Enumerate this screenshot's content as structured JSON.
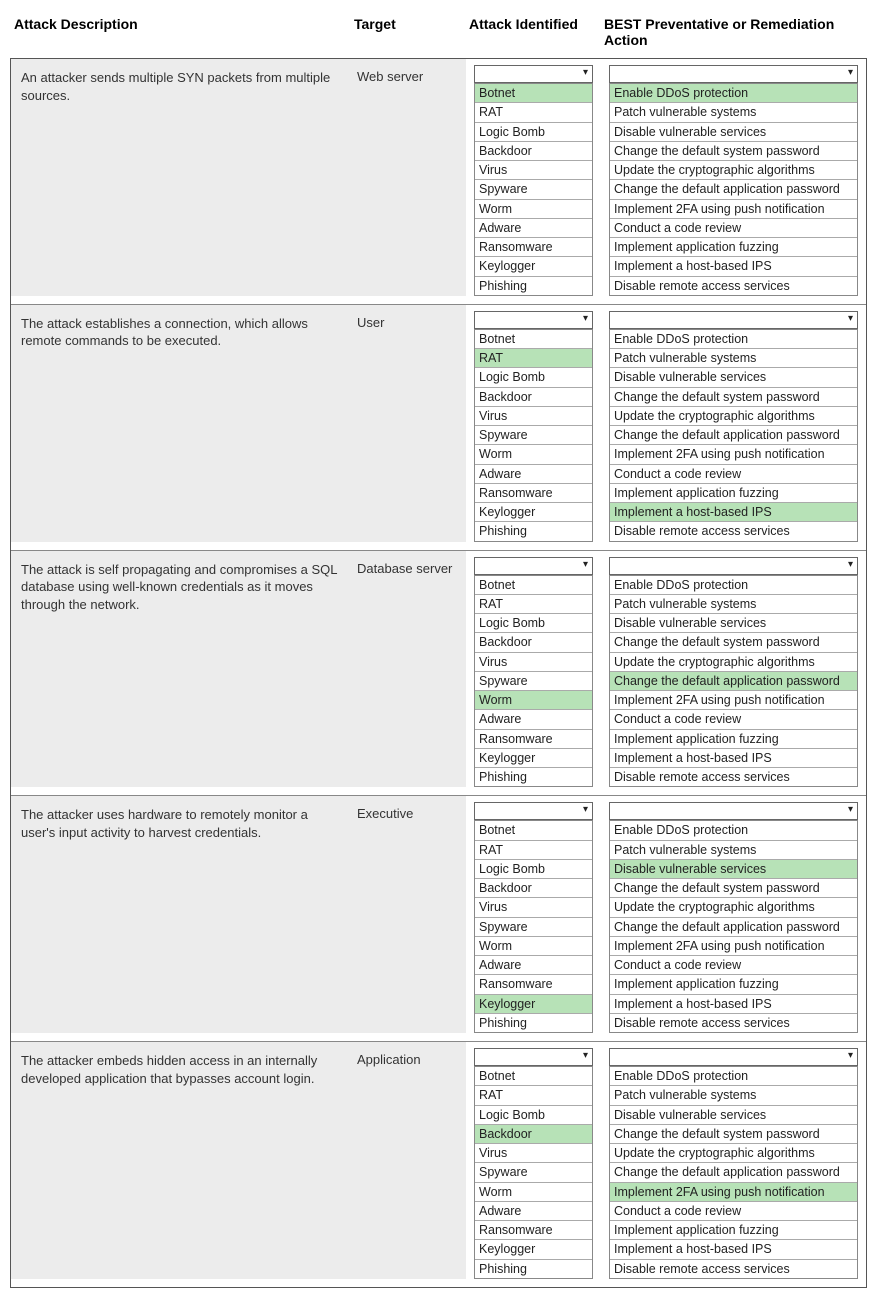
{
  "headers": {
    "desc": "Attack Description",
    "target": "Target",
    "attack": "Attack Identified",
    "action": "BEST Preventative or Remediation Action"
  },
  "attack_options": [
    "Botnet",
    "RAT",
    "Logic Bomb",
    "Backdoor",
    "Virus",
    "Spyware",
    "Worm",
    "Adware",
    "Ransomware",
    "Keylogger",
    "Phishing"
  ],
  "action_options": [
    "Enable DDoS protection",
    "Patch vulnerable systems",
    "Disable vulnerable services",
    "Change the default system password",
    "Update the cryptographic algorithms",
    "Change the default application password",
    "Implement 2FA using push notification",
    "Conduct a code review",
    "Implement application fuzzing",
    "Implement a host-based IPS",
    "Disable remote access services"
  ],
  "scenarios": [
    {
      "desc": "An attacker sends multiple SYN packets from multiple sources.",
      "target": "Web server",
      "attack_hl": 0,
      "action_hl": 0
    },
    {
      "desc": "The attack establishes a connection, which allows remote commands to be executed.",
      "target": "User",
      "attack_hl": 1,
      "action_hl": 9
    },
    {
      "desc": "The attack is self propagating and compromises a SQL database using well-known credentials as it moves through the network.",
      "target": "Database server",
      "attack_hl": 6,
      "action_hl": 5
    },
    {
      "desc": "The attacker uses hardware to remotely monitor a user's input activity to harvest credentials.",
      "target": "Executive",
      "attack_hl": 9,
      "action_hl": 2
    },
    {
      "desc": "The attacker embeds hidden access in an internally developed application that bypasses account login.",
      "target": "Application",
      "attack_hl": 3,
      "action_hl": 6
    }
  ],
  "colors": {
    "highlight": "#b7e2b7",
    "header_bg": "#ececec"
  }
}
